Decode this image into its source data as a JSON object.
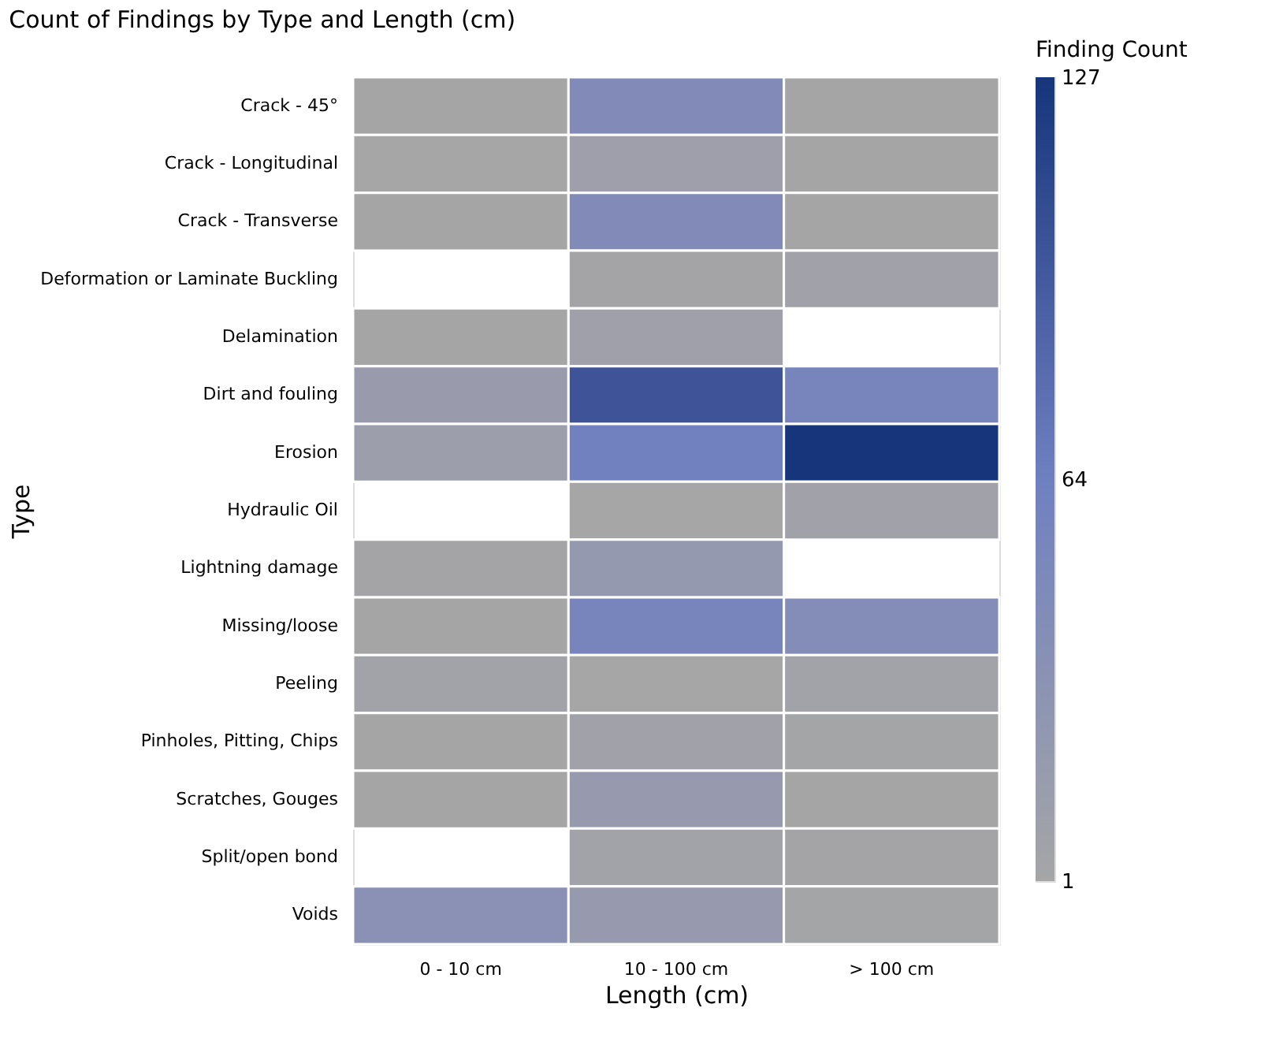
{
  "chart_data": {
    "type": "heatmap",
    "title": "Count of Findings by Type and Length (cm)",
    "xlabel": "Length (cm)",
    "ylabel": "Type",
    "legend_title": "Finding Count",
    "categories": [
      "0 - 10 cm",
      "10 - 100 cm",
      "> 100 cm"
    ],
    "y_categories": [
      "Crack - 45°",
      "Crack - Longitudinal",
      "Crack - Transverse",
      "Deformation or Laminate Buckling",
      "Delamination",
      "Dirt and fouling",
      "Erosion",
      "Hydraulic Oil",
      "Lightning damage",
      "Missing/loose",
      "Peeling",
      "Pinholes, Pitting, Chips",
      "Scratches, Gouges",
      "Split/open bond",
      "Voids"
    ],
    "cells": [
      [
        2,
        45,
        2
      ],
      [
        1,
        12,
        2
      ],
      [
        2,
        45,
        2
      ],
      [
        null,
        4,
        8
      ],
      [
        2,
        10,
        null
      ],
      [
        18,
        100,
        55
      ],
      [
        14,
        62,
        127
      ],
      [
        null,
        1,
        8
      ],
      [
        4,
        22,
        null
      ],
      [
        2,
        55,
        42
      ],
      [
        6,
        1,
        6
      ],
      [
        2,
        8,
        3
      ],
      [
        2,
        20,
        2
      ],
      [
        null,
        6,
        4
      ],
      [
        35,
        20,
        3
      ]
    ],
    "clim": [
      1,
      127
    ],
    "cticks": [
      1,
      64,
      127
    ],
    "colors": [
      "#a6a6a6",
      "#6f80c0",
      "#16357a"
    ]
  }
}
